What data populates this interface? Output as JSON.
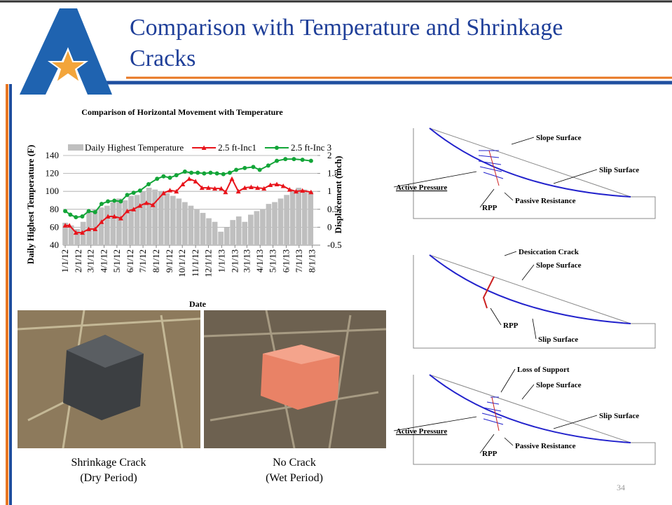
{
  "header": {
    "title": "Comparison with Temperature and Shrinkage Cracks"
  },
  "chart_data": {
    "type": "combo",
    "title": "Comparison of Horizontal Movement with Temperature",
    "x_label": "Date",
    "y_label": "Daily Highest Temperature (F)",
    "y2_label": "Displacement (inch)",
    "xlim": [
      -5,
      590
    ],
    "xticks": [
      {
        "value": 0,
        "label": "1/1/12"
      },
      {
        "value": 31,
        "label": "2/1/12"
      },
      {
        "value": 60,
        "label": "3/1/12"
      },
      {
        "value": 91,
        "label": "4/1/12"
      },
      {
        "value": 121,
        "label": "5/1/12"
      },
      {
        "value": 152,
        "label": "6/1/12"
      },
      {
        "value": 182,
        "label": "7/1/12"
      },
      {
        "value": 213,
        "label": "8/1/12"
      },
      {
        "value": 244,
        "label": "9/1/12"
      },
      {
        "value": 274,
        "label": "10/1/12"
      },
      {
        "value": 305,
        "label": "11/1/12"
      },
      {
        "value": 335,
        "label": "12/1/12"
      },
      {
        "value": 366,
        "label": "1/1/13"
      },
      {
        "value": 397,
        "label": "2/1/13"
      },
      {
        "value": 425,
        "label": "3/1/13"
      },
      {
        "value": 456,
        "label": "4/1/13"
      },
      {
        "value": 486,
        "label": "5/1/13"
      },
      {
        "value": 517,
        "label": "6/1/13"
      },
      {
        "value": 547,
        "label": "7/1/13"
      },
      {
        "value": 578,
        "label": "8/1/13"
      }
    ],
    "ylim": [
      40,
      140
    ],
    "yticks": [
      40,
      60,
      80,
      100,
      120,
      140
    ],
    "y2lim": [
      -0.5,
      2
    ],
    "y2ticks": [
      -0.5,
      0,
      0.5,
      1,
      1.5,
      2
    ],
    "grid": true,
    "series": [
      {
        "name": "Daily Highest Temperature",
        "type": "bar",
        "color": "#bfbfbf",
        "x": [
          0,
          14,
          28,
          42,
          56,
          70,
          84,
          98,
          112,
          126,
          140,
          154,
          168,
          182,
          196,
          210,
          224,
          238,
          252,
          266,
          280,
          294,
          308,
          322,
          336,
          350,
          364,
          378,
          392,
          406,
          420,
          434,
          448,
          462,
          476,
          490,
          504,
          518,
          532,
          546,
          560,
          574
        ],
        "values": [
          65,
          62,
          58,
          66,
          78,
          80,
          82,
          84,
          88,
          92,
          90,
          95,
          96,
          100,
          104,
          102,
          100,
          98,
          95,
          92,
          88,
          84,
          80,
          76,
          70,
          66,
          55,
          60,
          68,
          72,
          66,
          74,
          78,
          80,
          86,
          88,
          92,
          96,
          100,
          104,
          102,
          100
        ]
      },
      {
        "name": "2.5 ft-Inc1",
        "type": "line",
        "marker": "triangle",
        "axis": "y2",
        "color": "#e8141b",
        "x": [
          0,
          10,
          25,
          40,
          55,
          70,
          85,
          100,
          115,
          130,
          145,
          160,
          175,
          190,
          205,
          230,
          245,
          260,
          275,
          290,
          305,
          320,
          335,
          350,
          365,
          375,
          390,
          405,
          420,
          435,
          450,
          465,
          480,
          495,
          510,
          525,
          540,
          555,
          575
        ],
        "values": [
          0.05,
          0.05,
          -0.15,
          -0.15,
          -0.05,
          -0.05,
          0.15,
          0.3,
          0.3,
          0.25,
          0.45,
          0.5,
          0.6,
          0.68,
          0.62,
          0.95,
          1.03,
          1.0,
          1.2,
          1.35,
          1.28,
          1.1,
          1.1,
          1.08,
          1.08,
          0.98,
          1.35,
          1.0,
          1.1,
          1.12,
          1.1,
          1.08,
          1.18,
          1.2,
          1.15,
          1.05,
          1.0,
          1.02,
          0.98
        ]
      },
      {
        "name": "2.5 ft-Inc 3",
        "type": "line",
        "marker": "circle",
        "axis": "y2",
        "color": "#13a538",
        "x": [
          0,
          12,
          25,
          40,
          55,
          70,
          85,
          100,
          115,
          130,
          145,
          160,
          175,
          195,
          215,
          230,
          245,
          260,
          280,
          295,
          310,
          325,
          340,
          355,
          370,
          385,
          400,
          420,
          440,
          455,
          475,
          495,
          515,
          535,
          555,
          575
        ],
        "values": [
          0.45,
          0.35,
          0.28,
          0.3,
          0.45,
          0.42,
          0.65,
          0.72,
          0.74,
          0.72,
          0.9,
          0.96,
          1.02,
          1.2,
          1.35,
          1.42,
          1.38,
          1.45,
          1.55,
          1.52,
          1.52,
          1.5,
          1.52,
          1.5,
          1.48,
          1.52,
          1.6,
          1.65,
          1.68,
          1.6,
          1.72,
          1.85,
          1.9,
          1.9,
          1.88,
          1.85
        ]
      }
    ]
  },
  "photos": [
    {
      "caption": "Shrinkage Crack",
      "subcaption": "(Dry Period)"
    },
    {
      "caption": "No Crack",
      "subcaption": "(Wet Period)"
    }
  ],
  "diagrams": [
    {
      "labels": [
        "Slope Surface",
        "Slip Surface",
        "Active Pressure",
        "Passive Resistance",
        "RPP"
      ]
    },
    {
      "labels": [
        "Desiccation Crack",
        "Slope Surface",
        "RPP",
        "Slip Surface"
      ]
    },
    {
      "labels": [
        "Loss of Support",
        "Slope Surface",
        "Slip Surface",
        "Active Pressure",
        "Passive Resistance",
        "RPP"
      ]
    }
  ],
  "page_number": "34"
}
